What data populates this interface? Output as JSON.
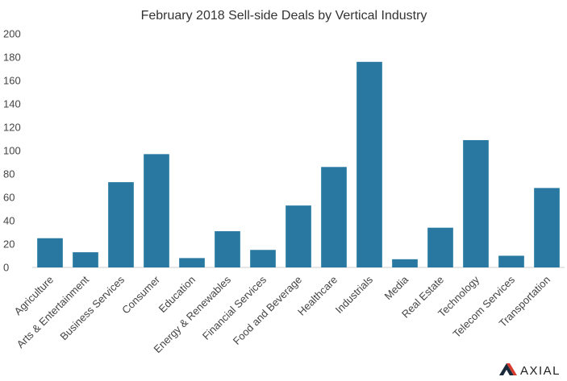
{
  "chart_data": {
    "type": "bar",
    "title": "February 2018 Sell-side Deals by Vertical Industry",
    "xlabel": "",
    "ylabel": "",
    "categories": [
      "Agriculture",
      "Arts & Entertainment",
      "Business Services",
      "Consumer",
      "Education",
      "Energy & Renewables",
      "Financial Services",
      "Food and Beverage",
      "Healthcare",
      "Industrials",
      "Media",
      "Real Estate",
      "Technology",
      "Telecom Services",
      "Transportation"
    ],
    "values": [
      25,
      13,
      73,
      97,
      8,
      31,
      15,
      53,
      86,
      176,
      7,
      34,
      109,
      10,
      68
    ],
    "ylim": [
      0,
      200
    ],
    "yticks": [
      0,
      20,
      40,
      60,
      80,
      100,
      120,
      140,
      160,
      180,
      200
    ],
    "grid": false,
    "legend": "none",
    "bar_color": "#2878a2"
  },
  "logo": {
    "text": "AXIAL",
    "mark_colors": [
      "#1a2a3a",
      "#d83a2e"
    ]
  }
}
